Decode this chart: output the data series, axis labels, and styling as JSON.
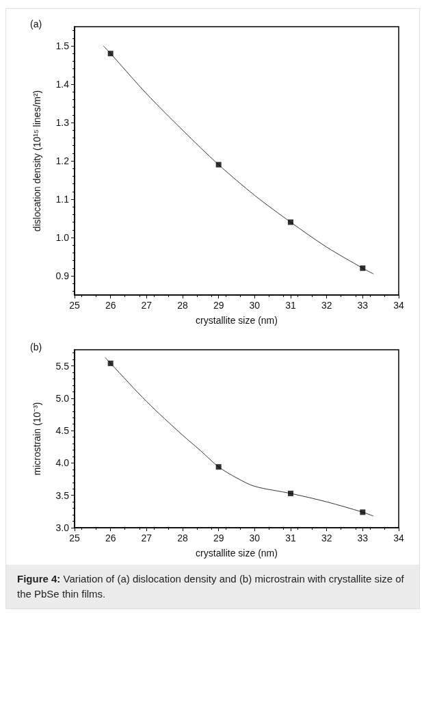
{
  "chart_data": [
    {
      "type": "scatter",
      "title": "(a)",
      "xlabel": "crystallite size (nm)",
      "ylabel": "dislocation density (10¹⁵ lines/m²)",
      "xlim": [
        25,
        34
      ],
      "xticks": [
        25,
        26,
        27,
        28,
        29,
        30,
        31,
        32,
        33,
        34
      ],
      "ylim": [
        0.85,
        1.55
      ],
      "yticks": [
        0.9,
        {
          "value": 1,
          "label": "1.0"
        },
        1.1,
        1.2,
        1.3,
        1.4,
        1.5
      ],
      "marker": "square",
      "grid": false,
      "series": [
        {
          "color": "#000000",
          "x": [
            26,
            29,
            31,
            33
          ],
          "values": [
            1.48,
            1.19,
            1.04,
            0.92
          ]
        },
        {
          "type": "line",
          "color": "#333333",
          "marker": "none",
          "x": [
            25.8,
            26,
            27,
            28,
            29,
            30,
            31,
            32,
            33,
            33.3
          ],
          "values": [
            1.5,
            1.48,
            1.375,
            1.28,
            1.19,
            1.11,
            1.04,
            0.975,
            0.92,
            0.905
          ]
        }
      ]
    },
    {
      "type": "scatter",
      "title": "(b)",
      "xlabel": "crystallite size (nm)",
      "ylabel": "microstrain (10⁻³)",
      "xlim": [
        25,
        34
      ],
      "xticks": [
        25,
        26,
        27,
        28,
        29,
        30,
        31,
        32,
        33,
        34
      ],
      "ylim": [
        3.0,
        5.75
      ],
      "yticks": [
        {
          "value": 3,
          "label": "3.0"
        },
        3.5,
        {
          "value": 4,
          "label": "4.0"
        },
        4.5,
        {
          "value": 5,
          "label": "5.0"
        },
        5.5
      ],
      "marker": "square",
      "grid": false,
      "series": [
        {
          "color": "#000000",
          "x": [
            26,
            29,
            31,
            33
          ],
          "values": [
            5.54,
            3.94,
            3.53,
            3.24
          ]
        },
        {
          "type": "line",
          "color": "#333333",
          "marker": "none",
          "x": [
            25.85,
            26,
            27,
            28,
            28.5,
            29,
            29.5,
            30,
            31,
            32,
            33,
            33.3
          ],
          "values": [
            5.63,
            5.54,
            4.95,
            4.43,
            4.19,
            3.94,
            3.77,
            3.64,
            3.53,
            3.4,
            3.24,
            3.18
          ]
        }
      ],
      "annotations": [
        "Figure 4: Variation of (a) dislocation density and (b) microstrain with crystallite size of the PbSe thin films."
      ]
    }
  ]
}
